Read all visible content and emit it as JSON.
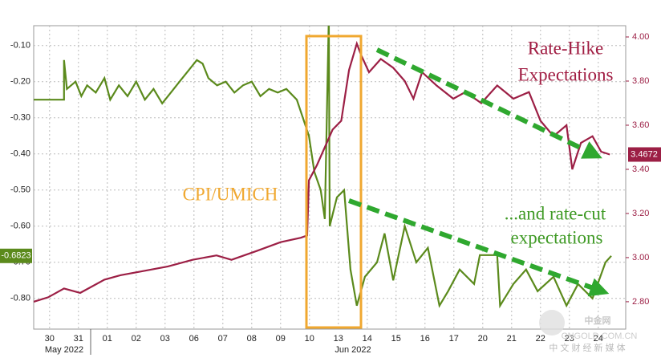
{
  "chart_data": {
    "type": "line",
    "categories": [
      "30",
      "31",
      "01",
      "02",
      "03",
      "06",
      "07",
      "08",
      "09",
      "10",
      "13",
      "14",
      "15",
      "16",
      "17",
      "20",
      "21",
      "22",
      "23",
      "24"
    ],
    "x_groups": [
      "May 2022",
      "Jun 2022"
    ],
    "xlim": [
      -0.55,
      19.95
    ],
    "ylim": [
      -0.885,
      -0.045
    ],
    "yticks": [
      {
        "value": -0.1,
        "label": "-0.10"
      },
      {
        "value": -0.2,
        "label": "-0.20"
      },
      {
        "value": -0.3,
        "label": "-0.30"
      },
      {
        "value": -0.4,
        "label": "-0.40"
      },
      {
        "value": -0.5,
        "label": "-0.50"
      },
      {
        "value": -0.6,
        "label": "-0.60"
      },
      {
        "value": -0.7,
        "label": "-0.70"
      },
      {
        "value": -0.8,
        "label": "-0.80"
      }
    ],
    "y2lim": [
      2.676,
      4.051
    ],
    "y2ticks": [
      {
        "value": 4.0,
        "label": "4.00"
      },
      {
        "value": 3.8,
        "label": "3.80"
      },
      {
        "value": 3.6,
        "label": "3.60"
      },
      {
        "value": 3.4,
        "label": "3.40"
      },
      {
        "value": 3.2,
        "label": "3.20"
      },
      {
        "value": 3.0,
        "label": "3.00"
      },
      {
        "value": 2.8,
        "label": "2.80"
      }
    ],
    "grid": true,
    "series": [
      {
        "name": "rate-cut expectations",
        "color": "#5b8a1c",
        "axis": "y",
        "last_value": -0.6823,
        "x": [
          -0.55,
          0.5,
          0.5,
          0.6,
          0.9,
          1.1,
          1.3,
          1.6,
          1.9,
          2.1,
          2.4,
          2.7,
          3.0,
          3.3,
          3.6,
          3.9,
          4.2,
          4.5,
          4.8,
          5.1,
          5.3,
          5.5,
          5.8,
          6.1,
          6.4,
          6.7,
          7.0,
          7.3,
          7.6,
          7.9,
          8.2,
          8.56,
          8.98,
          9.17,
          9.39,
          9.53,
          9.67,
          9.7,
          9.95,
          10.2,
          10.42,
          10.64,
          10.92,
          11.34,
          11.6,
          11.9,
          12.3,
          12.7,
          13.1,
          13.5,
          13.8,
          14.2,
          14.7,
          14.9,
          15.5,
          15.6,
          16.06,
          16.5,
          16.9,
          17.45,
          17.9,
          18.3,
          18.8,
          19.25,
          19.45
        ],
        "values": [
          -0.25,
          -0.25,
          -0.14,
          -0.22,
          -0.2,
          -0.24,
          -0.21,
          -0.23,
          -0.19,
          -0.25,
          -0.21,
          -0.24,
          -0.2,
          -0.25,
          -0.22,
          -0.26,
          -0.23,
          -0.2,
          -0.17,
          -0.14,
          -0.15,
          -0.19,
          -0.21,
          -0.2,
          -0.23,
          -0.21,
          -0.2,
          -0.24,
          -0.22,
          -0.23,
          -0.22,
          -0.25,
          -0.35,
          -0.45,
          -0.5,
          -0.58,
          -0.02,
          -0.6,
          -0.52,
          -0.5,
          -0.72,
          -0.82,
          -0.74,
          -0.7,
          -0.62,
          -0.75,
          -0.6,
          -0.7,
          -0.66,
          -0.82,
          -0.78,
          -0.72,
          -0.76,
          -0.68,
          -0.68,
          -0.82,
          -0.76,
          -0.72,
          -0.78,
          -0.74,
          -0.82,
          -0.76,
          -0.8,
          -0.7,
          -0.6823
        ]
      },
      {
        "name": "rate-hike expectations",
        "color": "#9c1f45",
        "axis": "y2",
        "last_value": 3.4672,
        "x": [
          -0.55,
          -0.05,
          0.5,
          1.06,
          1.9,
          2.45,
          3.28,
          4.1,
          4.95,
          5.78,
          6.3,
          7.17,
          8.0,
          8.7,
          8.92,
          8.98,
          9.26,
          9.53,
          9.8,
          10.1,
          10.37,
          10.64,
          10.78,
          11.06,
          11.47,
          11.9,
          12.3,
          12.6,
          12.9,
          13.4,
          13.98,
          14.4,
          14.95,
          15.5,
          16.06,
          16.6,
          17.0,
          17.45,
          17.9,
          18.1,
          18.4,
          18.8,
          19.1,
          19.4
        ],
        "values": [
          2.8,
          2.82,
          2.86,
          2.84,
          2.9,
          2.92,
          2.94,
          2.96,
          2.99,
          3.01,
          2.99,
          3.03,
          3.07,
          3.09,
          3.1,
          3.35,
          3.42,
          3.5,
          3.58,
          3.62,
          3.85,
          3.97,
          3.92,
          3.84,
          3.9,
          3.86,
          3.8,
          3.72,
          3.84,
          3.78,
          3.72,
          3.75,
          3.7,
          3.78,
          3.72,
          3.75,
          3.62,
          3.55,
          3.6,
          3.4,
          3.52,
          3.55,
          3.48,
          3.4672
        ]
      }
    ],
    "annotations": [
      {
        "lines": [
          "Rate-Hike",
          "Expectations"
        ],
        "color": "#a01c42"
      },
      {
        "lines": [
          "CPI/UMICH"
        ],
        "color": "#f0a830"
      },
      {
        "lines": [
          "...and rate-cut",
          "expectations"
        ],
        "color": "#3f9a25"
      }
    ],
    "watermark": {
      "logo": "中金网",
      "url": "CNGOLD.COM.CN",
      "slogan": "中 文 财 经 新 媒 体"
    }
  }
}
